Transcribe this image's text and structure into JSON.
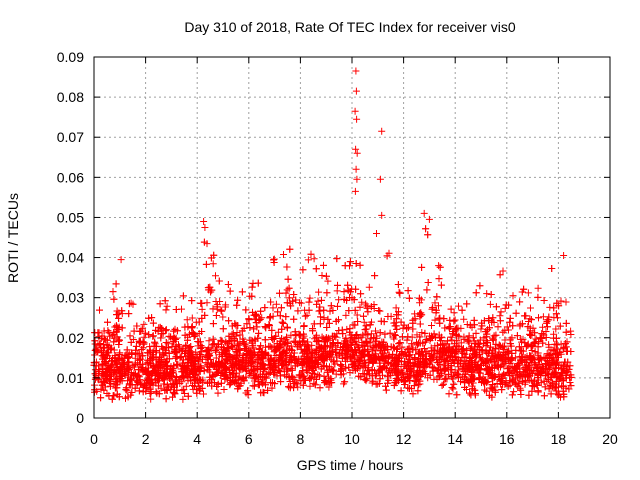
{
  "chart_data": {
    "type": "scatter",
    "title": "Day 310 of 2018, Rate Of TEC Index for receiver vis0",
    "xlabel": "GPS time / hours",
    "ylabel": "ROTI / TECUs",
    "xlim": [
      0,
      20
    ],
    "ylim": [
      0,
      0.09
    ],
    "x_ticks": [
      "0",
      "2",
      "4",
      "6",
      "8",
      "10",
      "12",
      "14",
      "16",
      "18",
      "20"
    ],
    "y_ticks": [
      "0",
      "0.01",
      "0.02",
      "0.03",
      "0.04",
      "0.05",
      "0.06",
      "0.07",
      "0.08",
      "0.09"
    ],
    "grid": true,
    "marker": "+",
    "series_color": "#ff0000",
    "x_extent": [
      0,
      18.5
    ],
    "envelope": [
      {
        "x": 0.0,
        "base": 0.012,
        "max": 0.03
      },
      {
        "x": 0.5,
        "base": 0.011,
        "max": 0.027
      },
      {
        "x": 1.0,
        "base": 0.011,
        "max": 0.04
      },
      {
        "x": 1.5,
        "base": 0.01,
        "max": 0.03
      },
      {
        "x": 2.0,
        "base": 0.011,
        "max": 0.028
      },
      {
        "x": 2.5,
        "base": 0.011,
        "max": 0.031
      },
      {
        "x": 3.0,
        "base": 0.011,
        "max": 0.029
      },
      {
        "x": 3.5,
        "base": 0.012,
        "max": 0.033
      },
      {
        "x": 4.0,
        "base": 0.012,
        "max": 0.035
      },
      {
        "x": 4.3,
        "base": 0.013,
        "max": 0.049
      },
      {
        "x": 4.8,
        "base": 0.013,
        "max": 0.043
      },
      {
        "x": 5.5,
        "base": 0.013,
        "max": 0.03
      },
      {
        "x": 6.0,
        "base": 0.013,
        "max": 0.033
      },
      {
        "x": 6.5,
        "base": 0.013,
        "max": 0.036
      },
      {
        "x": 7.0,
        "base": 0.014,
        "max": 0.042
      },
      {
        "x": 7.5,
        "base": 0.014,
        "max": 0.044
      },
      {
        "x": 8.0,
        "base": 0.014,
        "max": 0.04
      },
      {
        "x": 8.5,
        "base": 0.014,
        "max": 0.043
      },
      {
        "x": 9.0,
        "base": 0.014,
        "max": 0.041
      },
      {
        "x": 9.5,
        "base": 0.015,
        "max": 0.044
      },
      {
        "x": 10.0,
        "base": 0.016,
        "max": 0.045
      },
      {
        "x": 10.5,
        "base": 0.015,
        "max": 0.04
      },
      {
        "x": 11.0,
        "base": 0.015,
        "max": 0.038
      },
      {
        "x": 11.5,
        "base": 0.013,
        "max": 0.042
      },
      {
        "x": 12.0,
        "base": 0.012,
        "max": 0.033
      },
      {
        "x": 12.5,
        "base": 0.013,
        "max": 0.036
      },
      {
        "x": 12.9,
        "base": 0.014,
        "max": 0.051
      },
      {
        "x": 13.3,
        "base": 0.014,
        "max": 0.041
      },
      {
        "x": 13.8,
        "base": 0.013,
        "max": 0.032
      },
      {
        "x": 14.5,
        "base": 0.012,
        "max": 0.035
      },
      {
        "x": 15.0,
        "base": 0.012,
        "max": 0.033
      },
      {
        "x": 15.5,
        "base": 0.012,
        "max": 0.034
      },
      {
        "x": 16.0,
        "base": 0.013,
        "max": 0.038
      },
      {
        "x": 16.5,
        "base": 0.012,
        "max": 0.035
      },
      {
        "x": 17.0,
        "base": 0.012,
        "max": 0.035
      },
      {
        "x": 17.5,
        "base": 0.012,
        "max": 0.034
      },
      {
        "x": 18.0,
        "base": 0.012,
        "max": 0.041
      },
      {
        "x": 18.5,
        "base": 0.011,
        "max": 0.03
      }
    ],
    "highlighted_points": [
      {
        "x": 10.15,
        "y": 0.0865
      },
      {
        "x": 10.17,
        "y": 0.0815
      },
      {
        "x": 10.12,
        "y": 0.0765
      },
      {
        "x": 10.18,
        "y": 0.0745
      },
      {
        "x": 10.14,
        "y": 0.067
      },
      {
        "x": 10.2,
        "y": 0.066
      },
      {
        "x": 10.16,
        "y": 0.062
      },
      {
        "x": 10.19,
        "y": 0.0595
      },
      {
        "x": 10.13,
        "y": 0.0565
      },
      {
        "x": 11.15,
        "y": 0.0715
      },
      {
        "x": 11.1,
        "y": 0.0595
      },
      {
        "x": 11.15,
        "y": 0.0505
      },
      {
        "x": 10.95,
        "y": 0.046
      },
      {
        "x": 12.8,
        "y": 0.051
      },
      {
        "x": 13.0,
        "y": 0.0495
      },
      {
        "x": 4.25,
        "y": 0.049
      },
      {
        "x": 4.3,
        "y": 0.0475
      },
      {
        "x": 1.05,
        "y": 0.0395
      },
      {
        "x": 18.2,
        "y": 0.0405
      }
    ]
  }
}
